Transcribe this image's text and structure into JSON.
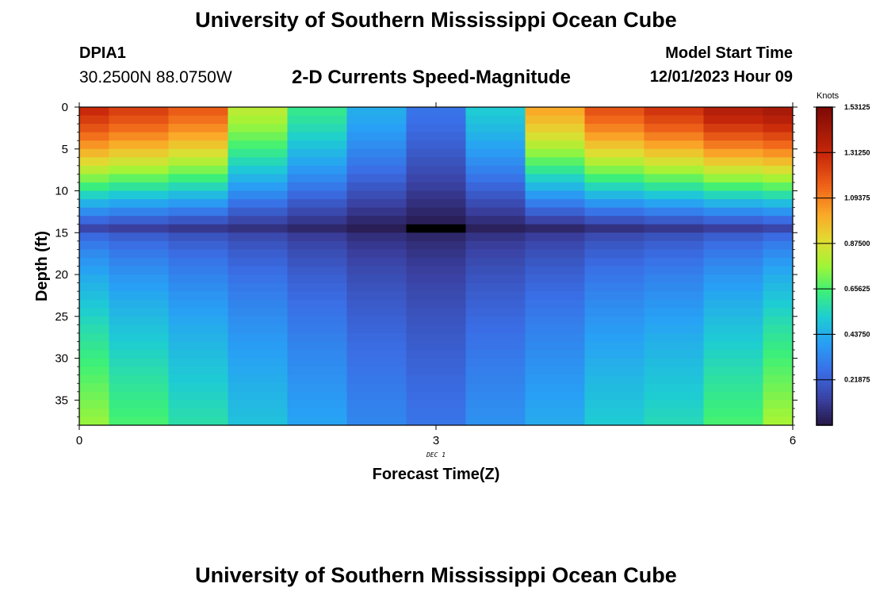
{
  "page": {
    "title": "University of Southern Mississippi Ocean Cube",
    "bottom_title": "University of Southern Mississippi Ocean Cube",
    "station": "DPIA1",
    "coordinates": "30.2500N  88.0750W",
    "model_start_label": "Model Start Time",
    "model_start_value": "12/01/2023 Hour 09"
  },
  "chart_data": {
    "type": "heatmap",
    "title": "2-D Currents Speed-Magnitude",
    "xlabel": "Forecast Time(Z)",
    "ylabel": "Depth (ft)",
    "x_date_label": "DEC 1",
    "xlim": [
      0,
      6
    ],
    "ylim": [
      0,
      38
    ],
    "x_ticks": [
      "0",
      "3",
      "6"
    ],
    "x_tick_values": [
      0,
      3,
      6
    ],
    "y_ticks": [
      "0",
      "5",
      "10",
      "15",
      "20",
      "25",
      "30",
      "35"
    ],
    "y_tick_values": [
      0,
      5,
      10,
      15,
      20,
      25,
      30,
      35
    ],
    "column_edges": [
      0,
      0.25,
      0.75,
      1.25,
      1.75,
      2.25,
      2.75,
      3.25,
      3.75,
      4.25,
      4.75,
      5.25,
      5.75,
      6
    ],
    "row_edges": [
      0,
      1,
      2,
      3,
      4,
      5,
      6,
      7,
      8,
      9,
      10,
      11,
      12,
      13,
      14,
      15,
      16,
      17,
      18,
      19,
      20,
      21,
      22,
      23,
      24,
      25,
      26,
      27,
      28,
      29,
      30,
      31,
      32,
      33,
      34,
      35,
      36,
      37,
      38
    ],
    "surface_speed": [
      1.31,
      1.25,
      1.18,
      0.82,
      0.62,
      0.44,
      0.28,
      0.52,
      1.02,
      1.2,
      1.28,
      1.38,
      1.42
    ],
    "bottom_speed": [
      0.76,
      0.66,
      0.58,
      0.49,
      0.41,
      0.33,
      0.28,
      0.36,
      0.43,
      0.52,
      0.56,
      0.66,
      0.78
    ],
    "core_min_speed": [
      0.14,
      0.12,
      0.1,
      0.08,
      0.05,
      0.02,
      0.0,
      0.03,
      0.05,
      0.08,
      0.1,
      0.12,
      0.14
    ],
    "core_depth_ft": 14.5,
    "colorbar": {
      "title": "Knots",
      "min": 0.0,
      "max": 1.53125,
      "tick_labels": [
        "1.53125",
        "1.31250",
        "1.09375",
        "0.87500",
        "0.65625",
        "0.43750",
        "0.21875"
      ],
      "tick_values": [
        1.53125,
        1.3125,
        1.09375,
        0.875,
        0.65625,
        0.4375,
        0.21875
      ]
    }
  }
}
